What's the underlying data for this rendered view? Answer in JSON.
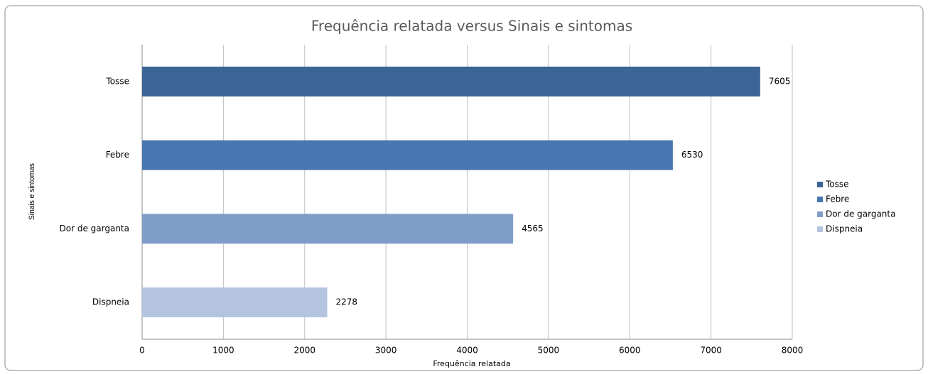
{
  "chart_data": {
    "type": "bar",
    "orientation": "horizontal",
    "title": "Frequência relatada  versus Sinais e sintomas",
    "x_label": "Frequência relatada",
    "y_label": "Sinais e sintomas",
    "categories": [
      "Tosse",
      "Febre",
      "Dor de garganta",
      "Dispneia"
    ],
    "values": [
      7605,
      6530,
      4565,
      2278
    ],
    "colors": [
      "#3c6496",
      "#4876b0",
      "#7f9dc8",
      "#b4c4df"
    ],
    "xlim": [
      0,
      8000
    ],
    "xticks": [
      0,
      1000,
      2000,
      3000,
      4000,
      5000,
      6000,
      7000,
      8000
    ],
    "grid": true,
    "legend": "right"
  }
}
